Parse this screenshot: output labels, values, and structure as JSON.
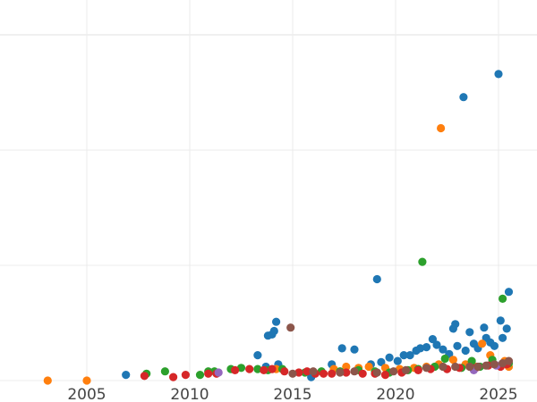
{
  "chart_data": {
    "type": "scatter",
    "title": "",
    "xlabel": "",
    "ylabel": "",
    "x_ticks": [
      2005,
      2010,
      2015,
      2020,
      2025
    ],
    "y_gridlines_relative": [
      0,
      100,
      200,
      300
    ],
    "y_tick_labels_visible": false,
    "xlim": [
      2001.2,
      2026.8
    ],
    "ylim": [
      0,
      330
    ],
    "grid": true,
    "legend": "none visible",
    "colors": {
      "blue": "#1f77b4",
      "orange": "#ff7f0e",
      "green": "#2ca02c",
      "red": "#d62728",
      "purple": "#9467bd",
      "brown": "#8c564b"
    },
    "series": [
      {
        "name": "blue",
        "color": "#1f77b4",
        "points": [
          [
            2006.9,
            5
          ],
          [
            2013.3,
            22
          ],
          [
            2013.7,
            12
          ],
          [
            2013.8,
            39
          ],
          [
            2014.0,
            40
          ],
          [
            2014.1,
            43
          ],
          [
            2014.2,
            51
          ],
          [
            2014.3,
            14
          ],
          [
            2015.9,
            3
          ],
          [
            2016.9,
            14
          ],
          [
            2017.4,
            28
          ],
          [
            2018.0,
            27
          ],
          [
            2018.8,
            14
          ],
          [
            2019.1,
            88
          ],
          [
            2019.3,
            16
          ],
          [
            2019.7,
            20
          ],
          [
            2020.1,
            17
          ],
          [
            2020.4,
            22
          ],
          [
            2020.7,
            22
          ],
          [
            2021.0,
            26
          ],
          [
            2021.2,
            28
          ],
          [
            2021.5,
            29
          ],
          [
            2021.8,
            36
          ],
          [
            2022.0,
            31
          ],
          [
            2022.3,
            27
          ],
          [
            2022.6,
            23
          ],
          [
            2022.8,
            45
          ],
          [
            2022.9,
            49
          ],
          [
            2023.0,
            30
          ],
          [
            2023.3,
            246
          ],
          [
            2023.4,
            26
          ],
          [
            2023.6,
            42
          ],
          [
            2023.8,
            32
          ],
          [
            2024.0,
            28
          ],
          [
            2024.3,
            46
          ],
          [
            2024.4,
            37
          ],
          [
            2024.6,
            33
          ],
          [
            2024.8,
            30
          ],
          [
            2025.0,
            266
          ],
          [
            2025.1,
            52
          ],
          [
            2025.2,
            37
          ],
          [
            2025.4,
            45
          ],
          [
            2025.5,
            77
          ]
        ]
      },
      {
        "name": "orange",
        "color": "#ff7f0e",
        "points": [
          [
            2003.1,
            0
          ],
          [
            2005.0,
            0
          ],
          [
            2014.2,
            10
          ],
          [
            2017.0,
            10
          ],
          [
            2017.6,
            12
          ],
          [
            2018.2,
            11
          ],
          [
            2018.7,
            12
          ],
          [
            2019.5,
            11
          ],
          [
            2020.2,
            10
          ],
          [
            2020.9,
            11
          ],
          [
            2021.5,
            12
          ],
          [
            2022.1,
            14
          ],
          [
            2022.2,
            219
          ],
          [
            2022.8,
            18
          ],
          [
            2023.4,
            14
          ],
          [
            2023.9,
            12
          ],
          [
            2024.2,
            32
          ],
          [
            2024.6,
            22
          ],
          [
            2025.3,
            17
          ],
          [
            2025.5,
            12
          ]
        ]
      },
      {
        "name": "green",
        "color": "#2ca02c",
        "points": [
          [
            2007.9,
            6
          ],
          [
            2008.8,
            8
          ],
          [
            2010.5,
            5
          ],
          [
            2010.9,
            8
          ],
          [
            2011.2,
            8
          ],
          [
            2012.0,
            10
          ],
          [
            2012.5,
            11
          ],
          [
            2013.3,
            10
          ],
          [
            2013.8,
            9
          ],
          [
            2014.5,
            10
          ],
          [
            2015.6,
            7
          ],
          [
            2016.4,
            8
          ],
          [
            2017.3,
            8
          ],
          [
            2018.2,
            9
          ],
          [
            2019.0,
            8
          ],
          [
            2019.7,
            7
          ],
          [
            2020.6,
            9
          ],
          [
            2021.1,
            10
          ],
          [
            2021.3,
            103
          ],
          [
            2021.9,
            12
          ],
          [
            2022.4,
            19
          ],
          [
            2023.2,
            11
          ],
          [
            2023.7,
            17
          ],
          [
            2024.1,
            12
          ],
          [
            2024.7,
            18
          ],
          [
            2025.2,
            71
          ],
          [
            2025.5,
            15
          ]
        ]
      },
      {
        "name": "red",
        "color": "#d62728",
        "points": [
          [
            2007.8,
            4
          ],
          [
            2009.2,
            3
          ],
          [
            2009.8,
            5
          ],
          [
            2010.9,
            6
          ],
          [
            2011.3,
            6
          ],
          [
            2012.2,
            9
          ],
          [
            2012.9,
            10
          ],
          [
            2013.6,
            9
          ],
          [
            2014.0,
            10
          ],
          [
            2014.6,
            8
          ],
          [
            2015.3,
            7
          ],
          [
            2015.7,
            8
          ],
          [
            2016.1,
            6
          ],
          [
            2016.5,
            6
          ],
          [
            2016.9,
            6
          ],
          [
            2017.6,
            7
          ],
          [
            2018.4,
            6
          ],
          [
            2019.0,
            6
          ],
          [
            2019.5,
            5
          ],
          [
            2020.3,
            7
          ],
          [
            2021.1,
            9
          ],
          [
            2021.7,
            10
          ],
          [
            2022.5,
            10
          ],
          [
            2023.1,
            11
          ],
          [
            2023.9,
            11
          ],
          [
            2024.5,
            13
          ],
          [
            2025.1,
            12
          ],
          [
            2025.4,
            14
          ]
        ]
      },
      {
        "name": "purple",
        "color": "#9467bd",
        "points": [
          [
            2011.4,
            7
          ],
          [
            2023.8,
            9
          ],
          [
            2024.9,
            13
          ]
        ]
      },
      {
        "name": "brown",
        "color": "#8c564b",
        "points": [
          [
            2014.9,
            46
          ],
          [
            2015.0,
            6
          ],
          [
            2016.0,
            8
          ],
          [
            2017.3,
            7
          ],
          [
            2018.0,
            8
          ],
          [
            2019.1,
            7
          ],
          [
            2019.9,
            8
          ],
          [
            2020.5,
            9
          ],
          [
            2021.5,
            11
          ],
          [
            2022.3,
            12
          ],
          [
            2022.9,
            12
          ],
          [
            2023.6,
            12
          ],
          [
            2024.0,
            12
          ],
          [
            2024.4,
            13
          ],
          [
            2024.8,
            14
          ],
          [
            2025.2,
            15
          ],
          [
            2025.5,
            17
          ]
        ]
      }
    ]
  }
}
